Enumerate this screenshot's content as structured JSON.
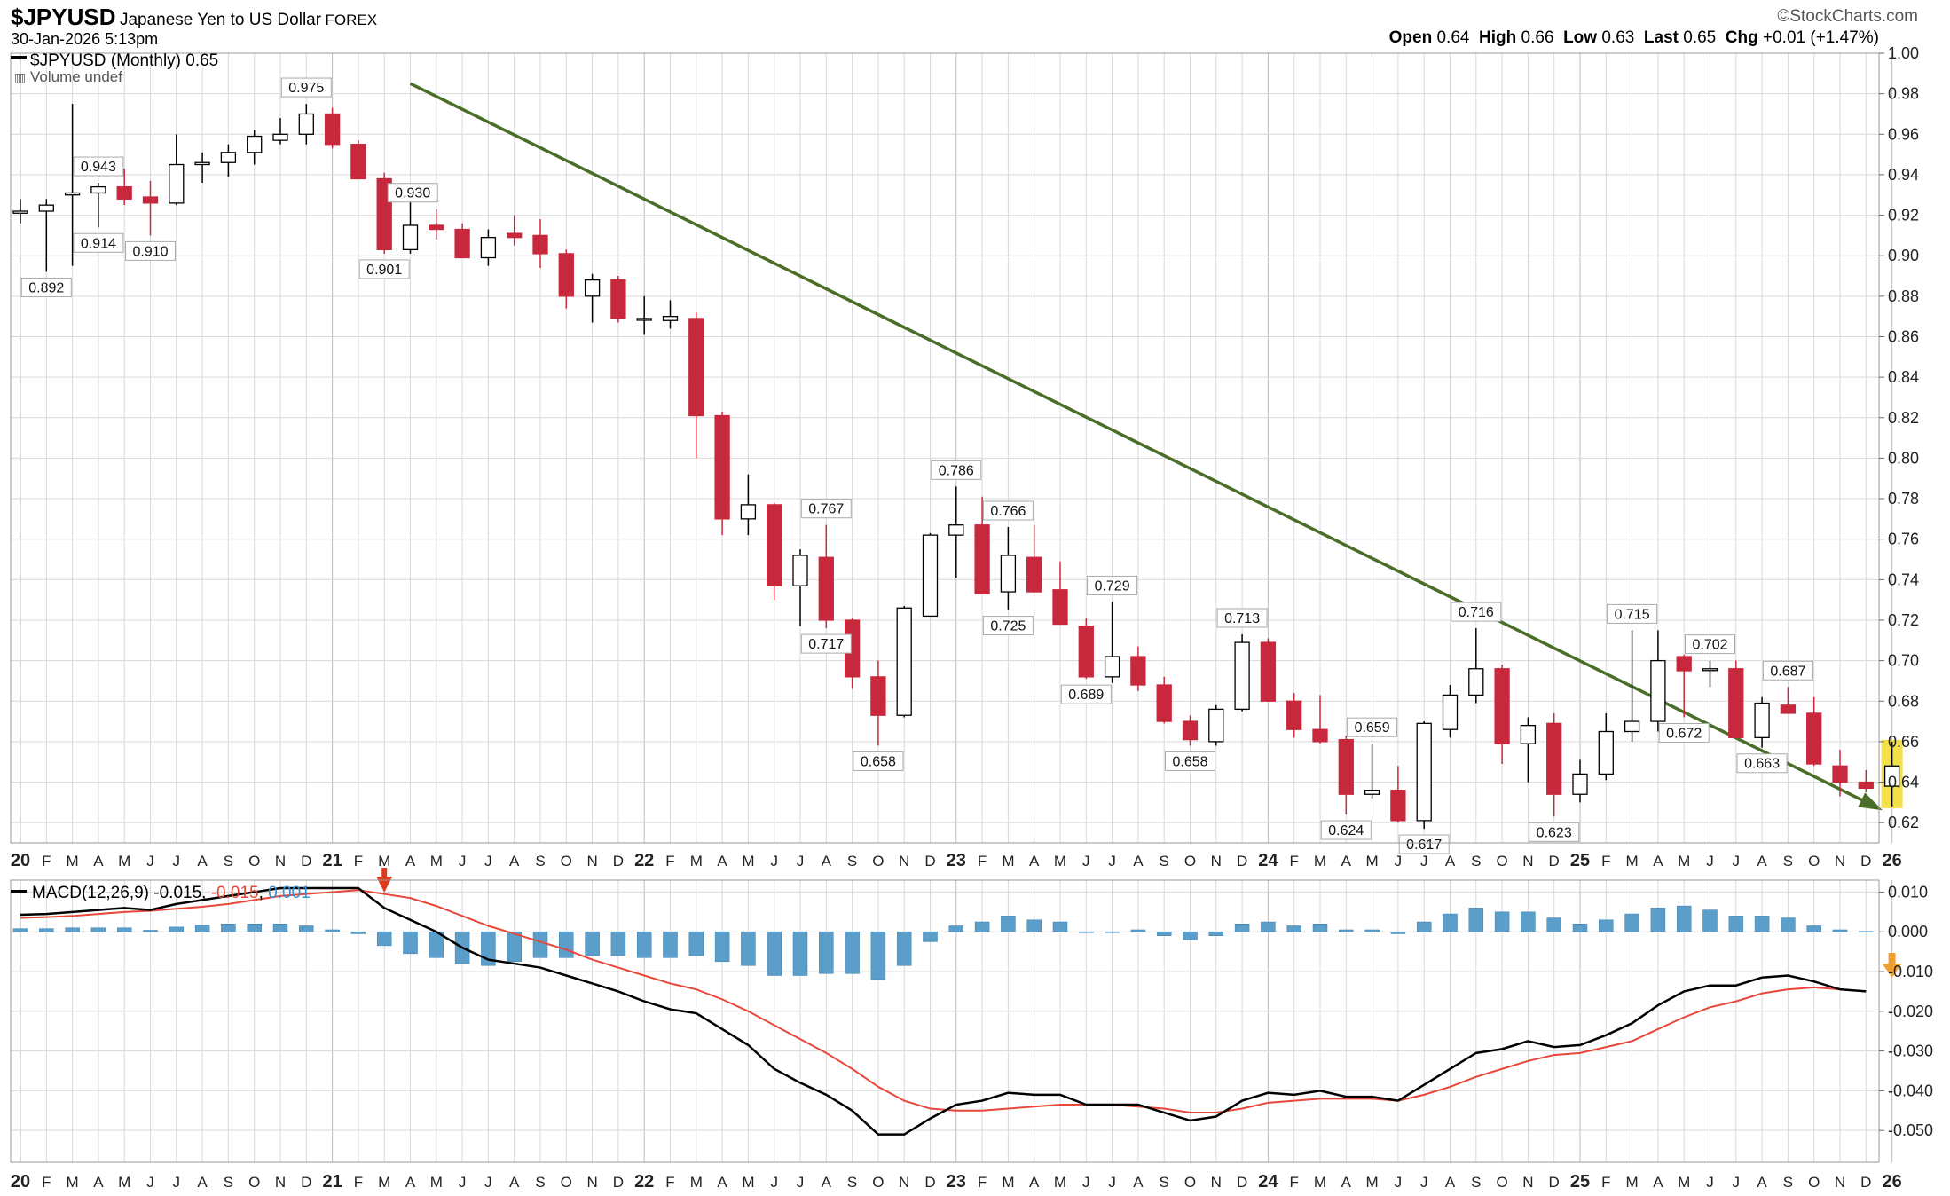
{
  "header": {
    "symbol": "$JPYUSD",
    "description": "Japanese Yen to US Dollar",
    "exchange": "FOREX",
    "timestamp": "30-Jan-2026 5:13pm",
    "brand": "©StockCharts.com",
    "legend_price": "$JPYUSD (Monthly) 0.65",
    "legend_volume": "Volume undef",
    "stats": [
      {
        "label": "Open",
        "value": "0.64"
      },
      {
        "label": "High",
        "value": "0.66"
      },
      {
        "label": "Low",
        "value": "0.63"
      },
      {
        "label": "Last",
        "value": "0.65"
      },
      {
        "label": "Chg",
        "value": "+0.01 (+1.47%)"
      }
    ]
  },
  "macd_legend": {
    "name": "MACD(12,26,9)",
    "macd": "-0.015",
    "signal": "-0.015",
    "hist": "0.001"
  },
  "colors": {
    "up": "#ffffff",
    "down": "#c8283c",
    "trendline": "#4a6e2a",
    "macd": "#000000",
    "signal": "#e8473a",
    "hist": "#5b9ec9",
    "grid": "#d9d9d9",
    "highlight": "#f3e04a",
    "arrow_red": "#e03a1e",
    "arrow_orange": "#f0a030"
  },
  "chart_data": [
    {
      "type": "candlestick",
      "title": "$JPYUSD (Monthly)",
      "ylim": [
        0.61,
        1.0
      ],
      "y_ticks": [
        "1.00",
        "0.98",
        "0.96",
        "0.94",
        "0.92",
        "0.90",
        "0.88",
        "0.86",
        "0.84",
        "0.82",
        "0.80",
        "0.78",
        "0.76",
        "0.74",
        "0.72",
        "0.70",
        "0.68",
        "0.66",
        "0.64",
        "0.62"
      ],
      "x_labels": [
        "20",
        "F",
        "M",
        "A",
        "M",
        "J",
        "J",
        "A",
        "S",
        "O",
        "N",
        "D",
        "21",
        "F",
        "M",
        "A",
        "M",
        "J",
        "J",
        "A",
        "S",
        "O",
        "N",
        "D",
        "22",
        "F",
        "M",
        "A",
        "M",
        "J",
        "J",
        "A",
        "S",
        "O",
        "N",
        "D",
        "23",
        "F",
        "M",
        "A",
        "M",
        "J",
        "J",
        "A",
        "S",
        "O",
        "N",
        "D",
        "24",
        "F",
        "M",
        "A",
        "M",
        "J",
        "J",
        "A",
        "S",
        "O",
        "N",
        "D",
        "25",
        "F",
        "M",
        "A",
        "M",
        "J",
        "J",
        "A",
        "S",
        "O",
        "N",
        "D",
        "26"
      ],
      "ohlc": [
        [
          0.921,
          0.928,
          0.916,
          0.922
        ],
        [
          0.922,
          0.928,
          0.892,
          0.925
        ],
        [
          0.93,
          0.975,
          0.895,
          0.931
        ],
        [
          0.931,
          0.936,
          0.914,
          0.934
        ],
        [
          0.934,
          0.943,
          0.925,
          0.928
        ],
        [
          0.929,
          0.937,
          0.91,
          0.926
        ],
        [
          0.926,
          0.96,
          0.925,
          0.945
        ],
        [
          0.945,
          0.951,
          0.936,
          0.946
        ],
        [
          0.946,
          0.955,
          0.939,
          0.951
        ],
        [
          0.951,
          0.962,
          0.945,
          0.959
        ],
        [
          0.957,
          0.968,
          0.955,
          0.96
        ],
        [
          0.96,
          0.975,
          0.955,
          0.97
        ],
        [
          0.97,
          0.973,
          0.953,
          0.955
        ],
        [
          0.955,
          0.957,
          0.938,
          0.938
        ],
        [
          0.938,
          0.941,
          0.901,
          0.903
        ],
        [
          0.903,
          0.93,
          0.901,
          0.915
        ],
        [
          0.915,
          0.923,
          0.908,
          0.913
        ],
        [
          0.913,
          0.916,
          0.899,
          0.899
        ],
        [
          0.899,
          0.913,
          0.895,
          0.909
        ],
        [
          0.911,
          0.92,
          0.905,
          0.909
        ],
        [
          0.91,
          0.918,
          0.894,
          0.901
        ],
        [
          0.901,
          0.903,
          0.874,
          0.88
        ],
        [
          0.88,
          0.891,
          0.867,
          0.888
        ],
        [
          0.888,
          0.89,
          0.867,
          0.869
        ],
        [
          0.869,
          0.88,
          0.861,
          0.869
        ],
        [
          0.868,
          0.878,
          0.864,
          0.87
        ],
        [
          0.869,
          0.872,
          0.8,
          0.821
        ],
        [
          0.821,
          0.823,
          0.762,
          0.77
        ],
        [
          0.77,
          0.792,
          0.762,
          0.777
        ],
        [
          0.777,
          0.778,
          0.73,
          0.737
        ],
        [
          0.737,
          0.755,
          0.717,
          0.752
        ],
        [
          0.751,
          0.767,
          0.716,
          0.72
        ],
        [
          0.72,
          0.721,
          0.686,
          0.692
        ],
        [
          0.692,
          0.7,
          0.658,
          0.673
        ],
        [
          0.673,
          0.727,
          0.672,
          0.726
        ],
        [
          0.722,
          0.763,
          0.722,
          0.762
        ],
        [
          0.762,
          0.786,
          0.741,
          0.767
        ],
        [
          0.767,
          0.781,
          0.733,
          0.733
        ],
        [
          0.734,
          0.766,
          0.725,
          0.752
        ],
        [
          0.751,
          0.767,
          0.734,
          0.734
        ],
        [
          0.735,
          0.749,
          0.719,
          0.718
        ],
        [
          0.717,
          0.721,
          0.691,
          0.692
        ],
        [
          0.692,
          0.729,
          0.689,
          0.702
        ],
        [
          0.702,
          0.707,
          0.685,
          0.688
        ],
        [
          0.688,
          0.692,
          0.669,
          0.67
        ],
        [
          0.67,
          0.673,
          0.658,
          0.661
        ],
        [
          0.66,
          0.678,
          0.658,
          0.676
        ],
        [
          0.676,
          0.713,
          0.675,
          0.709
        ],
        [
          0.709,
          0.711,
          0.68,
          0.68
        ],
        [
          0.68,
          0.684,
          0.662,
          0.666
        ],
        [
          0.666,
          0.683,
          0.659,
          0.66
        ],
        [
          0.661,
          0.663,
          0.624,
          0.634
        ],
        [
          0.634,
          0.659,
          0.632,
          0.636
        ],
        [
          0.636,
          0.648,
          0.62,
          0.621
        ],
        [
          0.621,
          0.67,
          0.617,
          0.669
        ],
        [
          0.666,
          0.688,
          0.662,
          0.683
        ],
        [
          0.683,
          0.716,
          0.679,
          0.696
        ],
        [
          0.696,
          0.698,
          0.649,
          0.659
        ],
        [
          0.659,
          0.672,
          0.64,
          0.668
        ],
        [
          0.669,
          0.674,
          0.623,
          0.634
        ],
        [
          0.634,
          0.651,
          0.63,
          0.644
        ],
        [
          0.644,
          0.674,
          0.641,
          0.665
        ],
        [
          0.665,
          0.715,
          0.66,
          0.67
        ],
        [
          0.67,
          0.715,
          0.665,
          0.7
        ],
        [
          0.702,
          0.703,
          0.672,
          0.695
        ],
        [
          0.696,
          0.7,
          0.687,
          0.696
        ],
        [
          0.696,
          0.7,
          0.662,
          0.662
        ],
        [
          0.662,
          0.682,
          0.657,
          0.679
        ],
        [
          0.678,
          0.687,
          0.674,
          0.674
        ],
        [
          0.674,
          0.682,
          0.648,
          0.649
        ],
        [
          0.648,
          0.656,
          0.633,
          0.64
        ],
        [
          0.64,
          0.646,
          0.635,
          0.637
        ],
        [
          0.638,
          0.66,
          0.628,
          0.648
        ]
      ],
      "peak_labels": [
        "0.975",
        "0.943",
        "0.914",
        "0.910",
        "0.892",
        "0.930",
        "0.901",
        "0.767",
        "0.717",
        "0.658",
        "0.786",
        "0.766",
        "0.725",
        "0.729",
        "0.689",
        "0.713",
        "0.658",
        "0.659",
        "0.624",
        "0.617",
        "0.716",
        "0.623",
        "0.715",
        "0.672",
        "0.702",
        "0.663",
        "0.687"
      ],
      "trendline": {
        "start_month_index": 15,
        "start_value": 0.985,
        "end_month_index": 71.5,
        "end_value": 0.627
      }
    },
    {
      "type": "macd",
      "title": "MACD(12,26,9)",
      "ylim": [
        -0.058,
        0.013
      ],
      "y_ticks": [
        "0.010",
        "0.000",
        "-0.010",
        "-0.020",
        "-0.030",
        "-0.040",
        "-0.050"
      ],
      "macd": [
        0.0043,
        0.0045,
        0.005,
        0.0055,
        0.006,
        0.0055,
        0.007,
        0.008,
        0.009,
        0.01,
        0.011,
        0.011,
        0.011,
        0.011,
        0.006,
        0.003,
        0.0,
        -0.004,
        -0.007,
        -0.008,
        -0.009,
        -0.011,
        -0.013,
        -0.015,
        -0.0175,
        -0.0195,
        -0.0205,
        -0.0245,
        -0.0285,
        -0.0345,
        -0.038,
        -0.041,
        -0.045,
        -0.051,
        -0.051,
        -0.047,
        -0.0435,
        -0.0425,
        -0.0405,
        -0.041,
        -0.041,
        -0.0435,
        -0.0435,
        -0.0435,
        -0.0455,
        -0.0475,
        -0.0465,
        -0.0425,
        -0.0405,
        -0.041,
        -0.04,
        -0.0415,
        -0.0415,
        -0.0425,
        -0.0385,
        -0.0345,
        -0.0305,
        -0.0295,
        -0.0275,
        -0.029,
        -0.0285,
        -0.026,
        -0.023,
        -0.0185,
        -0.015,
        -0.0135,
        -0.0135,
        -0.0115,
        -0.011,
        -0.0125,
        -0.0145,
        -0.015
      ],
      "signal": [
        0.0035,
        0.0037,
        0.004,
        0.0045,
        0.005,
        0.0053,
        0.0058,
        0.0063,
        0.007,
        0.008,
        0.009,
        0.0095,
        0.01,
        0.0105,
        0.0095,
        0.0085,
        0.0065,
        0.004,
        0.0015,
        -0.0005,
        -0.0025,
        -0.0045,
        -0.007,
        -0.009,
        -0.011,
        -0.013,
        -0.0145,
        -0.017,
        -0.02,
        -0.0235,
        -0.027,
        -0.0305,
        -0.0345,
        -0.039,
        -0.0425,
        -0.0445,
        -0.045,
        -0.045,
        -0.0445,
        -0.044,
        -0.0435,
        -0.0435,
        -0.0435,
        -0.044,
        -0.0445,
        -0.0455,
        -0.0455,
        -0.0445,
        -0.043,
        -0.0425,
        -0.042,
        -0.042,
        -0.042,
        -0.0425,
        -0.041,
        -0.039,
        -0.0365,
        -0.0345,
        -0.0325,
        -0.031,
        -0.0305,
        -0.029,
        -0.0275,
        -0.0245,
        -0.0215,
        -0.019,
        -0.0175,
        -0.0155,
        -0.0145,
        -0.014,
        -0.0145,
        -0.015
      ],
      "histogram": [
        0.0008,
        0.0008,
        0.001,
        0.001,
        0.001,
        0.0004,
        0.0012,
        0.0017,
        0.002,
        0.002,
        0.002,
        0.0015,
        0.0005,
        -0.0005,
        -0.0035,
        -0.0055,
        -0.0065,
        -0.008,
        -0.0085,
        -0.0075,
        -0.0065,
        -0.0065,
        -0.006,
        -0.006,
        -0.0065,
        -0.0065,
        -0.006,
        -0.0075,
        -0.0085,
        -0.011,
        -0.011,
        -0.0105,
        -0.0105,
        -0.012,
        -0.0085,
        -0.0025,
        0.0015,
        0.0025,
        0.004,
        0.003,
        0.0025,
        0.0,
        0.0,
        0.0005,
        -0.001,
        -0.002,
        -0.001,
        0.002,
        0.0025,
        0.0015,
        0.002,
        0.0005,
        0.0005,
        -0.0005,
        0.0025,
        0.0045,
        0.006,
        0.005,
        0.005,
        0.0035,
        0.002,
        0.003,
        0.0045,
        0.006,
        0.0065,
        0.0055,
        0.004,
        0.004,
        0.0035,
        0.0015,
        0.0005,
        0.0001
      ]
    }
  ]
}
